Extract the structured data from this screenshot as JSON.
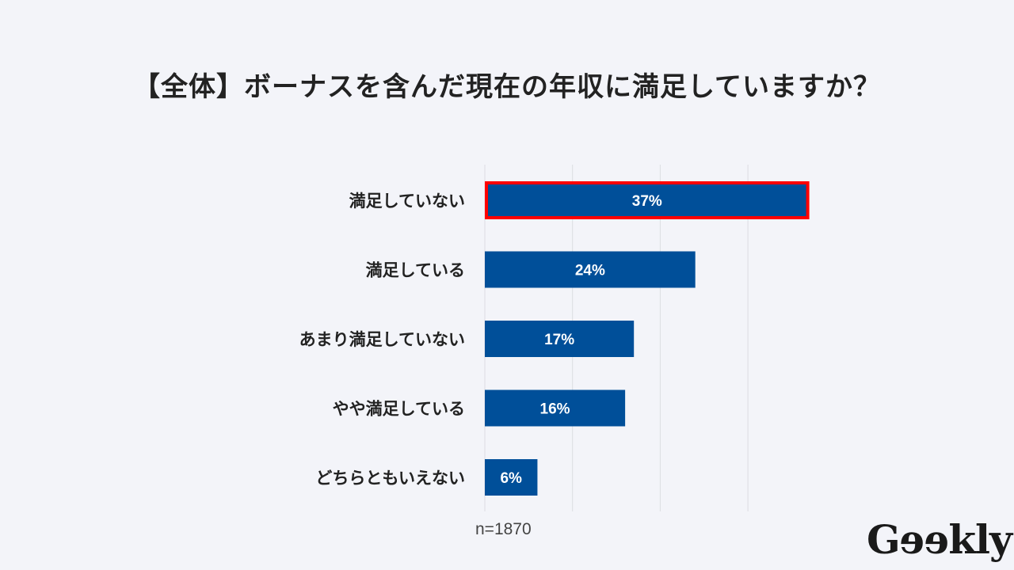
{
  "chart_data": {
    "type": "bar",
    "orientation": "horizontal",
    "title": "【全体】ボーナスを含んだ現在の年収に満足していますか？",
    "categories": [
      "満足していない",
      "満足している",
      "あまり満足していない",
      "やや満足している",
      "どちらともいえない"
    ],
    "values": [
      37,
      24,
      17,
      16,
      6
    ],
    "value_labels": [
      "37%",
      "24%",
      "17%",
      "16%",
      "6%"
    ],
    "xlim": [
      0,
      40
    ],
    "grid": true,
    "highlight_index": 0,
    "note": "n=1870",
    "colors": {
      "bar": "#004f99",
      "highlight_border": "#ff0000",
      "grid": "#dcdde2"
    }
  },
  "logo": "Geekly"
}
